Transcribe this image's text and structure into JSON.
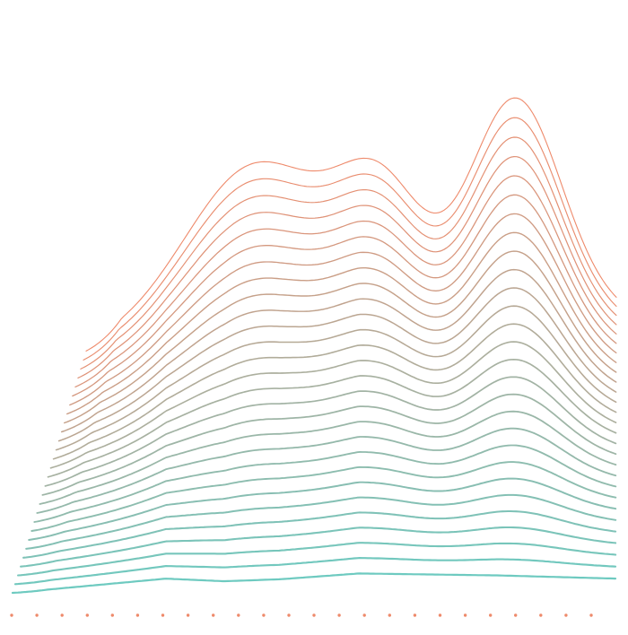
{
  "artwork": {
    "ridge_count": 28,
    "dot_count": 24,
    "colors": {
      "front": "#6ecac0",
      "middle": "#a9b0a0",
      "back": "#ee8a6b",
      "dots": "#ee8a6b",
      "background": "#ffffff"
    }
  }
}
